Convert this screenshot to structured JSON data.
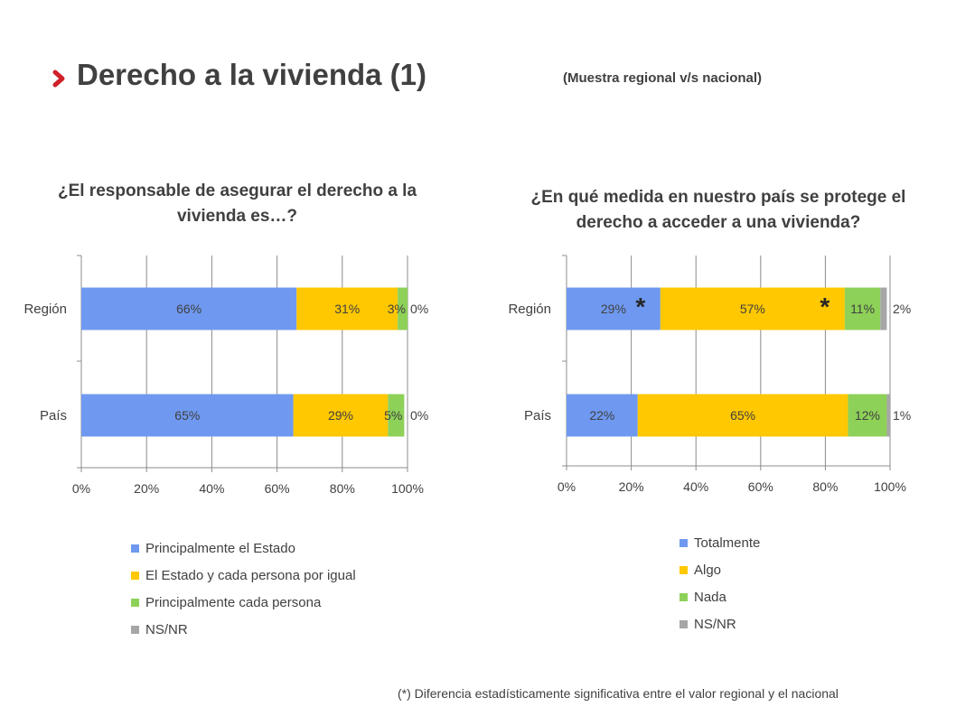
{
  "header": {
    "title": "Derecho a la vivienda (1)",
    "subtitle": "(Muestra regional v/s nacional)",
    "icon": "chevron-right-icon",
    "accent_color": "#d0202a"
  },
  "footnote": "(*) Diferencia estadísticamente significativa entre el valor regional y el nacional",
  "chart_data": [
    {
      "type": "bar",
      "orientation": "horizontal",
      "stacked": true,
      "title": "¿El responsable de asegurar el derecho a la vivienda es…?",
      "categories": [
        "Región",
        "País"
      ],
      "series": [
        {
          "name": "Principalmente el Estado",
          "color": "#6f99f0",
          "values": [
            66,
            65
          ],
          "labels": [
            "66%",
            "65%"
          ]
        },
        {
          "name": "El Estado y cada persona por igual",
          "color": "#ffc800",
          "values": [
            31,
            29
          ],
          "labels": [
            "31%",
            "29%"
          ]
        },
        {
          "name": "Principalmente cada persona",
          "color": "#8ed158",
          "values": [
            3,
            5
          ],
          "labels": [
            "3%",
            "5%"
          ]
        },
        {
          "name": "NS/NR",
          "color": "#a6a6a6",
          "values": [
            0,
            0
          ],
          "labels": [
            "0%",
            "0%"
          ]
        }
      ],
      "xlim": [
        0,
        100
      ],
      "xticks": [
        "0%",
        "20%",
        "40%",
        "60%",
        "80%",
        "100%"
      ],
      "grid": true,
      "legend_position": "bottom",
      "significance_marks": []
    },
    {
      "type": "bar",
      "orientation": "horizontal",
      "stacked": true,
      "title": "¿En qué medida en nuestro país se protege el derecho a acceder a una vivienda?",
      "categories": [
        "Región",
        "País"
      ],
      "series": [
        {
          "name": "Totalmente",
          "color": "#6f99f0",
          "values": [
            29,
            22
          ],
          "labels": [
            "29%",
            "22%"
          ]
        },
        {
          "name": "Algo",
          "color": "#ffc800",
          "values": [
            57,
            65
          ],
          "labels": [
            "57%",
            "65%"
          ]
        },
        {
          "name": "Nada",
          "color": "#8ed158",
          "values": [
            11,
            12
          ],
          "labels": [
            "11%",
            "12%"
          ]
        },
        {
          "name": "NS/NR",
          "color": "#a6a6a6",
          "values": [
            2,
            1
          ],
          "labels": [
            "2%",
            "1%"
          ]
        }
      ],
      "xlim": [
        0,
        100
      ],
      "xticks": [
        "0%",
        "20%",
        "40%",
        "60%",
        "80%",
        "100%"
      ],
      "grid": true,
      "legend_position": "bottom",
      "significance_marks": [
        {
          "category": 0,
          "series": 0,
          "mark": "*"
        },
        {
          "category": 0,
          "series": 1,
          "mark": "*"
        }
      ]
    }
  ]
}
